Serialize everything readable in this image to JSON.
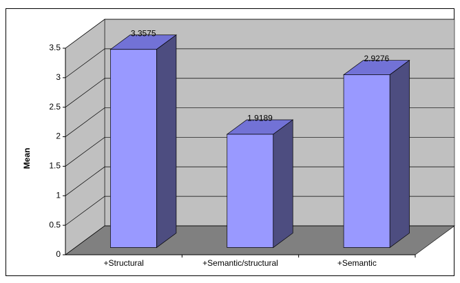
{
  "chart_data": {
    "type": "bar3d",
    "y_label": "Mean",
    "categories": [
      "+Structural",
      "+Semantic/structural",
      "+Semantic"
    ],
    "values": [
      3.3575,
      1.9189,
      2.9276
    ],
    "color": "#9999ff",
    "ylim": [
      0,
      3.5
    ],
    "yticks": [
      0,
      0.5,
      1,
      1.5,
      2,
      2.5,
      3,
      3.5
    ],
    "grid": true
  }
}
